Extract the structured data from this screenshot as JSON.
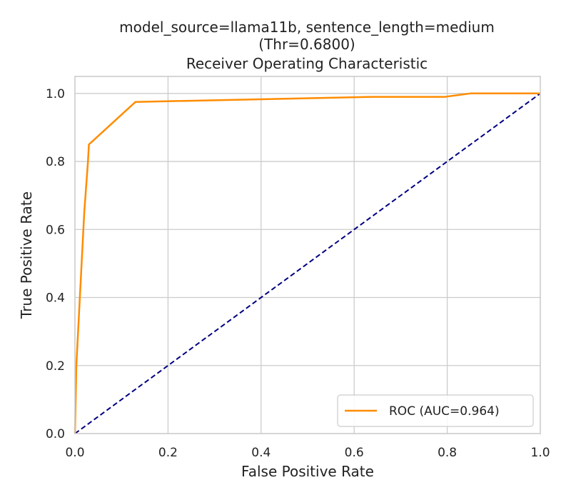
{
  "chart_data": {
    "type": "line",
    "title_lines": [
      "model_source=llama11b, sentence_length=medium",
      "(Thr=0.6800)",
      "Receiver Operating Characteristic"
    ],
    "xlabel": "False Positive Rate",
    "ylabel": "True Positive Rate",
    "xlim": [
      0.0,
      1.0
    ],
    "ylim": [
      0.0,
      1.05
    ],
    "xticks": [
      "0.0",
      "0.2",
      "0.4",
      "0.6",
      "0.8",
      "1.0"
    ],
    "yticks": [
      "0.0",
      "0.2",
      "0.4",
      "0.6",
      "0.8",
      "1.0"
    ],
    "grid": true,
    "legend_position": "lower-right",
    "series": [
      {
        "name": "ROC (AUC=0.964)",
        "color": "#ff8c00",
        "style": "solid",
        "x": [
          0.0,
          0.003,
          0.02,
          0.028,
          0.03,
          0.13,
          0.64,
          0.795,
          0.85,
          1.0
        ],
        "y": [
          0.0,
          0.2,
          0.65,
          0.8,
          0.85,
          0.975,
          0.99,
          0.99,
          1.0,
          1.0
        ]
      },
      {
        "color": "#000080",
        "style": "dashed",
        "x": [
          0.0,
          1.0
        ],
        "y": [
          0.0,
          1.0
        ]
      }
    ]
  }
}
